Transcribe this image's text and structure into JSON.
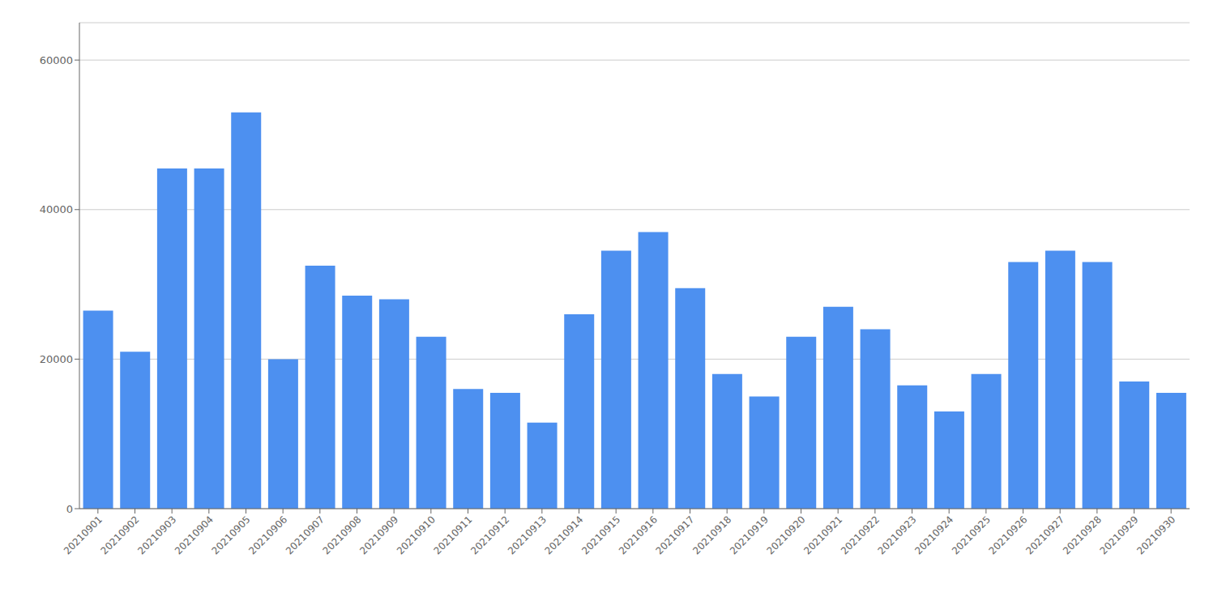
{
  "chart_data": {
    "type": "bar",
    "categories": [
      "20210901",
      "20210902",
      "20210903",
      "20210904",
      "20210905",
      "20210906",
      "20210907",
      "20210908",
      "20210909",
      "20210910",
      "20210911",
      "20210912",
      "20210913",
      "20210914",
      "20210915",
      "20210916",
      "20210917",
      "20210918",
      "20210919",
      "20210920",
      "20210921",
      "20210922",
      "20210923",
      "20210924",
      "20210925",
      "20210926",
      "20210927",
      "20210928",
      "20210929",
      "20210930"
    ],
    "values": [
      26500,
      21000,
      45500,
      45500,
      53000,
      20000,
      32500,
      28500,
      28000,
      23000,
      16000,
      15500,
      11500,
      26000,
      34500,
      37000,
      29500,
      18000,
      15000,
      23000,
      27000,
      24000,
      16500,
      13000,
      18000,
      33000,
      34500,
      33000,
      17000,
      15500
    ],
    "color": "#4d90f0",
    "ylim": [
      0,
      65000
    ],
    "yticks": [
      0,
      20000,
      40000,
      60000
    ],
    "grid": true
  }
}
